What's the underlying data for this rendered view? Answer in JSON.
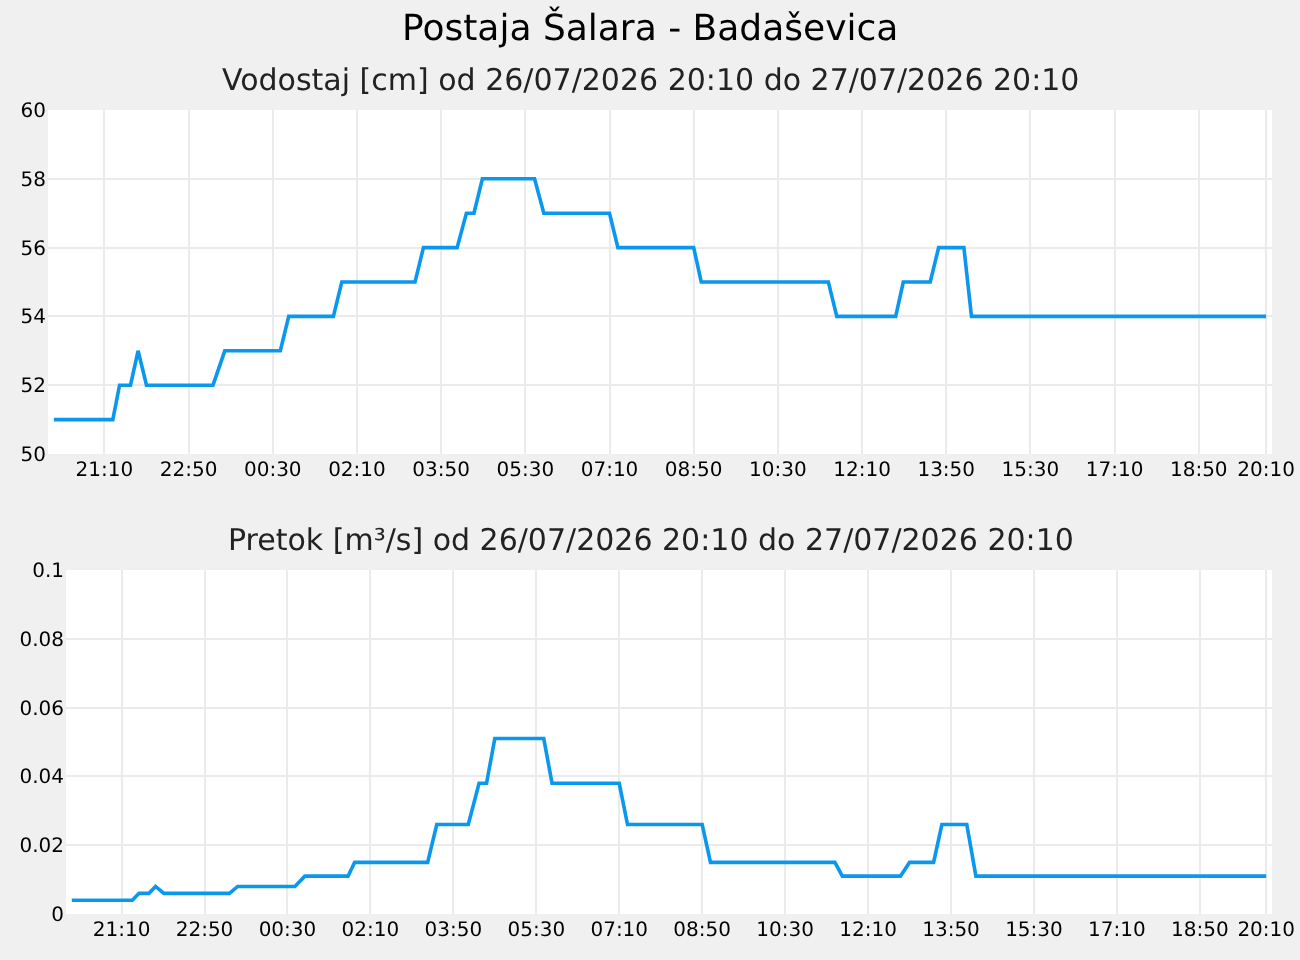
{
  "chart_data": [
    {
      "type": "line",
      "title": "Postaja Šalara - Badaševica",
      "subtitle": "Vodostaj [cm] od 26/07/2026 20:10 do 27/07/2026 20:10",
      "x": [
        "2026-07-26T20:10",
        "2026-07-26T21:20",
        "2026-07-26T21:28",
        "2026-07-26T21:41",
        "2026-07-26T21:50",
        "2026-07-26T22:00",
        "2026-07-26T23:19",
        "2026-07-26T23:33",
        "2026-07-27T00:39",
        "2026-07-27T00:49",
        "2026-07-27T01:42",
        "2026-07-27T01:52",
        "2026-07-27T03:19",
        "2026-07-27T03:29",
        "2026-07-27T04:09",
        "2026-07-27T04:20",
        "2026-07-27T04:29",
        "2026-07-27T04:39",
        "2026-07-27T05:41",
        "2026-07-27T05:52",
        "2026-07-27T07:10",
        "2026-07-27T07:20",
        "2026-07-27T08:50",
        "2026-07-27T08:59",
        "2026-07-27T11:30",
        "2026-07-27T11:40",
        "2026-07-27T12:50",
        "2026-07-27T12:59",
        "2026-07-27T13:31",
        "2026-07-27T13:41",
        "2026-07-27T14:11",
        "2026-07-27T14:20",
        "2026-07-27T20:10"
      ],
      "series": [
        {
          "color": "#0a97ee",
          "values": [
            51,
            51,
            52,
            52,
            53,
            52,
            52,
            53,
            53,
            54,
            54,
            55,
            55,
            56,
            56,
            57,
            57,
            58,
            58,
            57,
            57,
            56,
            56,
            55,
            55,
            54,
            54,
            55,
            55,
            56,
            56,
            54,
            54
          ]
        }
      ],
      "xlim": [
        "2026-07-26T20:03",
        "2026-07-27T20:17"
      ],
      "xticks": [
        {
          "value": "2026-07-26T21:10",
          "label": "21:10"
        },
        {
          "value": "2026-07-26T22:50",
          "label": "22:50"
        },
        {
          "value": "2026-07-27T00:30",
          "label": "00:30"
        },
        {
          "value": "2026-07-27T02:10",
          "label": "02:10"
        },
        {
          "value": "2026-07-27T03:50",
          "label": "03:50"
        },
        {
          "value": "2026-07-27T05:30",
          "label": "05:30"
        },
        {
          "value": "2026-07-27T07:10",
          "label": "07:10"
        },
        {
          "value": "2026-07-27T08:50",
          "label": "08:50"
        },
        {
          "value": "2026-07-27T10:30",
          "label": "10:30"
        },
        {
          "value": "2026-07-27T12:10",
          "label": "12:10"
        },
        {
          "value": "2026-07-27T13:50",
          "label": "13:50"
        },
        {
          "value": "2026-07-27T15:30",
          "label": "15:30"
        },
        {
          "value": "2026-07-27T17:10",
          "label": "17:10"
        },
        {
          "value": "2026-07-27T18:50",
          "label": "18:50"
        },
        {
          "value": "2026-07-27T20:10",
          "label": "20:10"
        }
      ],
      "ylim": [
        50,
        60
      ],
      "yticks": [
        50,
        52,
        54,
        56,
        58,
        60
      ],
      "grid": true,
      "marker": "none",
      "line_style": "solid"
    },
    {
      "type": "line",
      "title": "Pretok [m³/s] od 26/07/2026 20:10 do 27/07/2026 20:10",
      "x": [
        "2026-07-26T20:10",
        "2026-07-26T21:23",
        "2026-07-26T21:31",
        "2026-07-26T21:43",
        "2026-07-26T21:51",
        "2026-07-26T22:01",
        "2026-07-26T23:20",
        "2026-07-26T23:30",
        "2026-07-27T00:39",
        "2026-07-27T00:51",
        "2026-07-27T01:43",
        "2026-07-27T01:51",
        "2026-07-27T03:19",
        "2026-07-27T03:30",
        "2026-07-27T04:08",
        "2026-07-27T04:21",
        "2026-07-27T04:30",
        "2026-07-27T04:40",
        "2026-07-27T05:39",
        "2026-07-27T05:49",
        "2026-07-27T07:10",
        "2026-07-27T07:20",
        "2026-07-27T08:50",
        "2026-07-27T09:00",
        "2026-07-27T11:30",
        "2026-07-27T11:39",
        "2026-07-27T12:49",
        "2026-07-27T13:00",
        "2026-07-27T13:29",
        "2026-07-27T13:39",
        "2026-07-27T14:09",
        "2026-07-27T14:20",
        "2026-07-27T20:10"
      ],
      "series": [
        {
          "color": "#0a97ee",
          "values": [
            0.004,
            0.004,
            0.006,
            0.006,
            0.008,
            0.006,
            0.006,
            0.008,
            0.008,
            0.011,
            0.011,
            0.015,
            0.015,
            0.026,
            0.026,
            0.038,
            0.038,
            0.051,
            0.051,
            0.038,
            0.038,
            0.026,
            0.026,
            0.015,
            0.015,
            0.011,
            0.011,
            0.015,
            0.015,
            0.026,
            0.026,
            0.011,
            0.011
          ]
        }
      ],
      "xlim": [
        "2026-07-26T20:03",
        "2026-07-27T20:17"
      ],
      "xticks": [
        {
          "value": "2026-07-26T21:10",
          "label": "21:10"
        },
        {
          "value": "2026-07-26T22:50",
          "label": "22:50"
        },
        {
          "value": "2026-07-27T00:30",
          "label": "00:30"
        },
        {
          "value": "2026-07-27T02:10",
          "label": "02:10"
        },
        {
          "value": "2026-07-27T03:50",
          "label": "03:50"
        },
        {
          "value": "2026-07-27T05:30",
          "label": "05:30"
        },
        {
          "value": "2026-07-27T07:10",
          "label": "07:10"
        },
        {
          "value": "2026-07-27T08:50",
          "label": "08:50"
        },
        {
          "value": "2026-07-27T10:30",
          "label": "10:30"
        },
        {
          "value": "2026-07-27T12:10",
          "label": "12:10"
        },
        {
          "value": "2026-07-27T13:50",
          "label": "13:50"
        },
        {
          "value": "2026-07-27T15:30",
          "label": "15:30"
        },
        {
          "value": "2026-07-27T17:10",
          "label": "17:10"
        },
        {
          "value": "2026-07-27T18:50",
          "label": "18:50"
        },
        {
          "value": "2026-07-27T20:10",
          "label": "20:10"
        }
      ],
      "ylim": [
        0,
        0.1
      ],
      "yticks": [
        0,
        0.02,
        0.04,
        0.06,
        0.08,
        0.1
      ],
      "grid": true,
      "marker": "none",
      "line_style": "solid"
    }
  ]
}
